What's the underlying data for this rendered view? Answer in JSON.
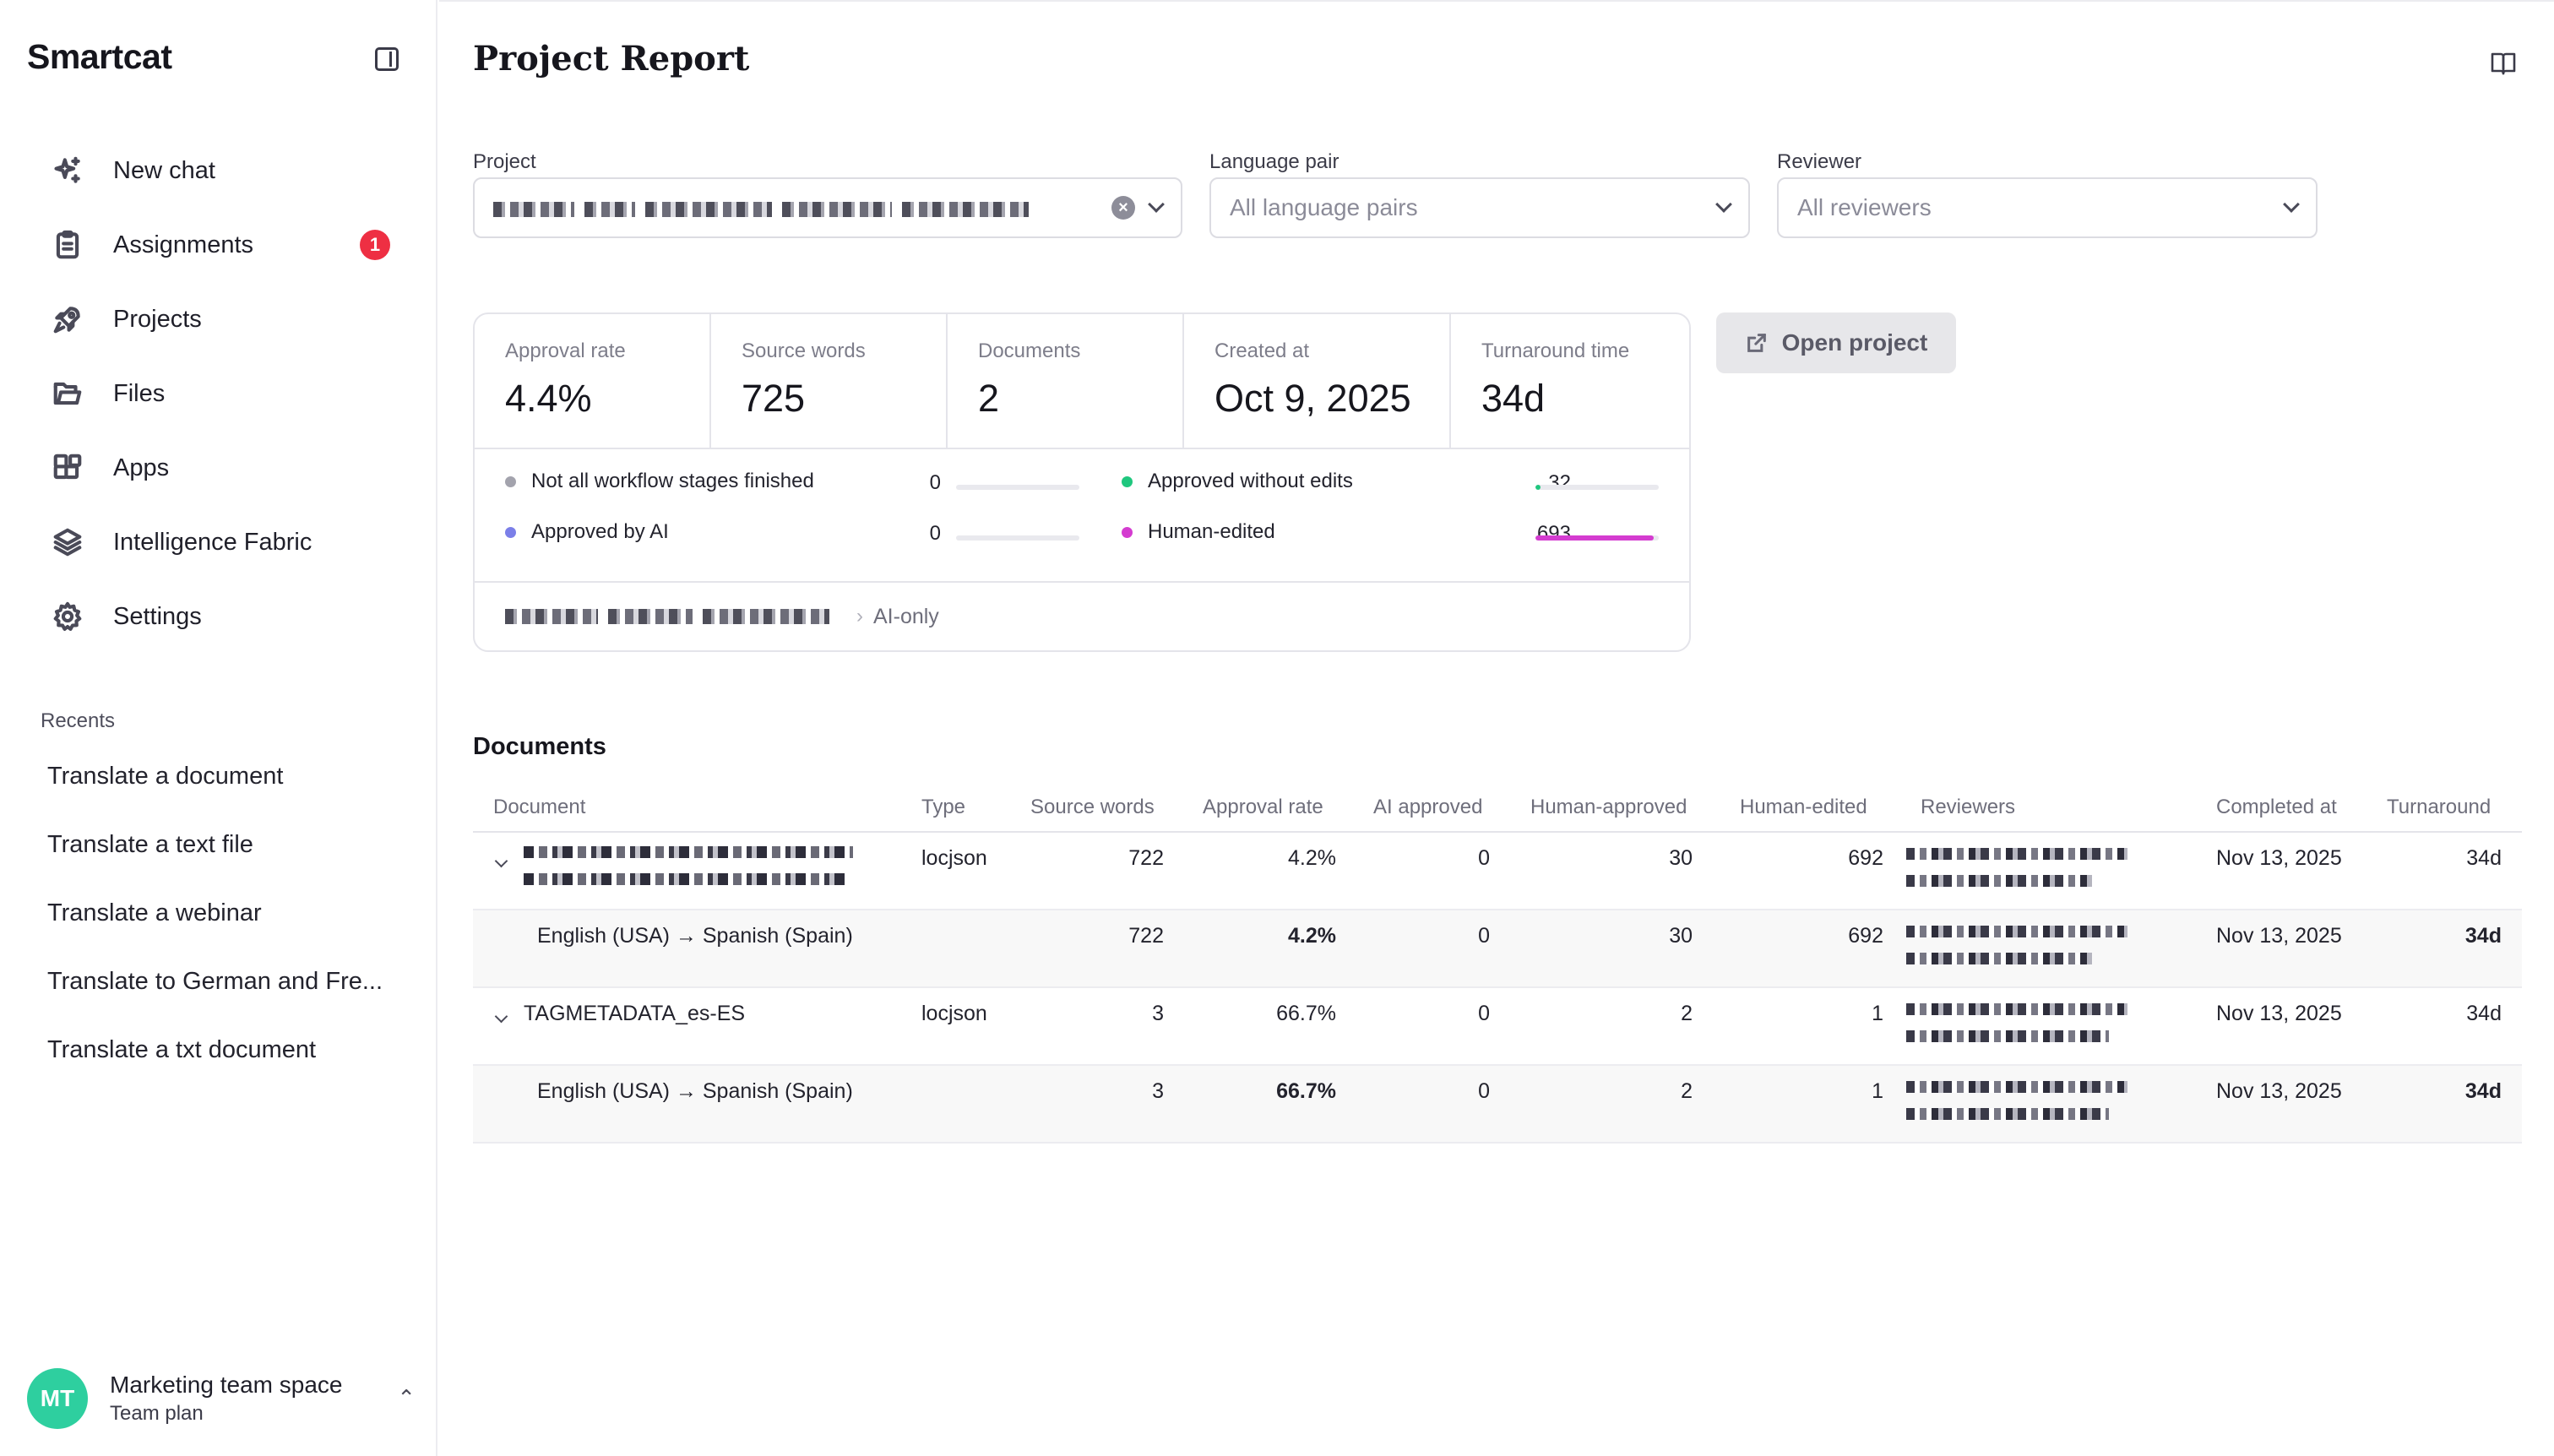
{
  "sidebar": {
    "logo": "Smartcat",
    "nav": [
      {
        "label": "New chat",
        "icon": "sparkle-icon"
      },
      {
        "label": "Assignments",
        "icon": "clipboard-icon",
        "badge": "1"
      },
      {
        "label": "Projects",
        "icon": "rocket-icon"
      },
      {
        "label": "Files",
        "icon": "folder-icon"
      },
      {
        "label": "Apps",
        "icon": "apps-grid-icon"
      },
      {
        "label": "Intelligence Fabric",
        "icon": "layers-icon"
      },
      {
        "label": "Settings",
        "icon": "gear-icon"
      }
    ],
    "recents_title": "Recents",
    "recents": [
      "Translate a document",
      "Translate a text file",
      "Translate a webinar",
      "Translate to German and Fre...",
      "Translate a txt document"
    ],
    "space": {
      "initials": "MT",
      "name": "Marketing team space",
      "plan": "Team plan"
    }
  },
  "header": {
    "title": "Project Report"
  },
  "filters": {
    "project_label": "Project",
    "language_label": "Language pair",
    "language_placeholder": "All language pairs",
    "reviewer_label": "Reviewer",
    "reviewer_placeholder": "All reviewers"
  },
  "stats": [
    {
      "label": "Approval rate",
      "value": "4.4%"
    },
    {
      "label": "Source words",
      "value": "725"
    },
    {
      "label": "Documents",
      "value": "2"
    },
    {
      "label": "Created at",
      "value": "Oct 9, 2025"
    },
    {
      "label": "Turnaround time",
      "value": "34d"
    }
  ],
  "breakdown": [
    {
      "label": "Not all workflow stages finished",
      "count": "0",
      "fraction": 0,
      "color": "#a3a3ad"
    },
    {
      "label": "Approved by AI",
      "count": "0",
      "fraction": 0,
      "color": "#7b7fe8"
    },
    {
      "label": "Approved without edits",
      "count": "32",
      "fraction": 0.044,
      "color": "#1fc77e"
    },
    {
      "label": "Human-edited",
      "count": "693",
      "fraction": 0.956,
      "color": "#d43cd0"
    }
  ],
  "card_footer": {
    "workflow": "AI-only"
  },
  "open_project_label": "Open project",
  "documents": {
    "title": "Documents",
    "columns": [
      "Document",
      "Type",
      "Source words",
      "Approval rate",
      "AI approved",
      "Human-approved",
      "Human-edited",
      "Reviewers",
      "Completed at",
      "Turnaround"
    ],
    "rows": [
      {
        "document": "",
        "type": "locjson",
        "source_words": "722",
        "approval_rate": "4.2%",
        "ai_approved": "0",
        "human_approved": "30",
        "human_edited": "692",
        "completed_at": "Nov 13, 2025",
        "turnaround": "34d",
        "sub": false
      },
      {
        "document": "English (USA) → Spanish (Spain)",
        "type": "",
        "source_words": "722",
        "approval_rate": "4.2%",
        "ai_approved": "0",
        "human_approved": "30",
        "human_edited": "692",
        "completed_at": "Nov 13, 2025",
        "turnaround": "34d",
        "sub": true
      },
      {
        "document": "TAGMETADATA_es-ES",
        "type": "locjson",
        "source_words": "3",
        "approval_rate": "66.7%",
        "ai_approved": "0",
        "human_approved": "2",
        "human_edited": "1",
        "completed_at": "Nov 13, 2025",
        "turnaround": "34d",
        "sub": false
      },
      {
        "document": "English (USA) → Spanish (Spain)",
        "type": "",
        "source_words": "3",
        "approval_rate": "66.7%",
        "ai_approved": "0",
        "human_approved": "2",
        "human_edited": "1",
        "completed_at": "Nov 13, 2025",
        "turnaround": "34d",
        "sub": true
      }
    ]
  },
  "colors": {
    "accent": "#2ecf9f",
    "badge": "#ee2f43"
  }
}
